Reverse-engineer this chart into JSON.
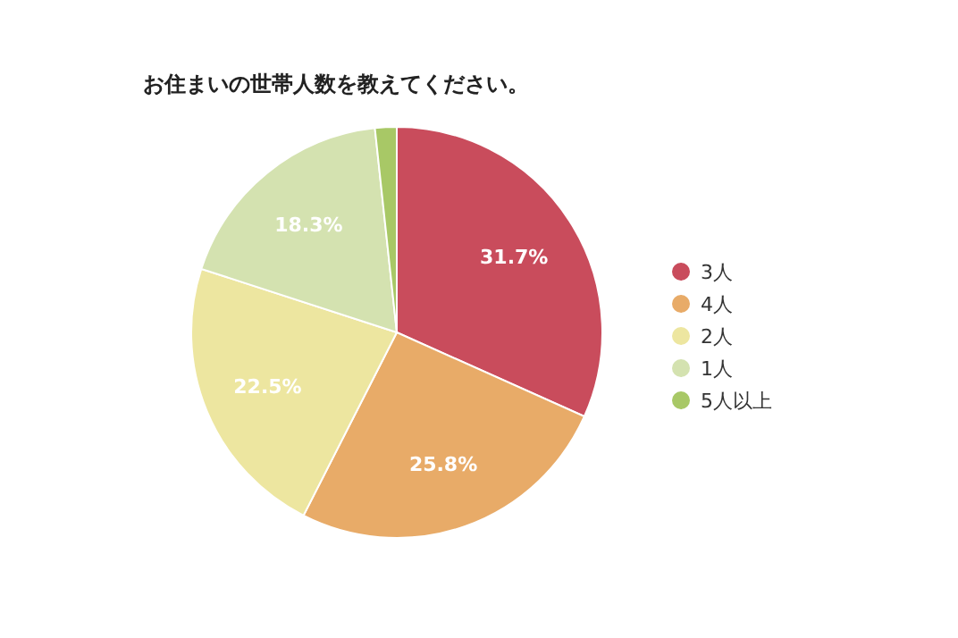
{
  "chart_data": {
    "type": "pie",
    "title": "お住まいの世帯人数を教えてください。",
    "categories": [
      "3人",
      "4人",
      "2人",
      "1人",
      "5人以上"
    ],
    "values": [
      31.7,
      25.8,
      22.5,
      18.3,
      1.7
    ],
    "value_labels": [
      "31.7%",
      "25.8%",
      "22.5%",
      "18.3%",
      null
    ],
    "colors": [
      "#c94c5c",
      "#e8ab68",
      "#ede6a0",
      "#d4e2b0",
      "#a8c866"
    ],
    "legend": "right"
  }
}
